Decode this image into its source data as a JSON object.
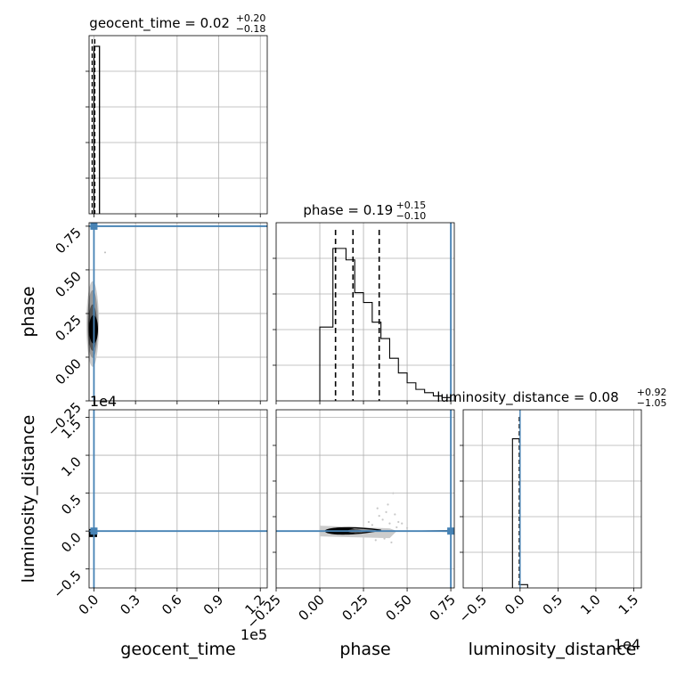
{
  "chart_data": {
    "type": "corner",
    "parameters": [
      "geocent_time",
      "phase",
      "luminosity_distance"
    ],
    "axis_labels": {
      "geocent_time": "geocent_time",
      "phase": "phase",
      "luminosity_distance": "luminosity_distance"
    },
    "titles": [
      {
        "name": "geocent_time",
        "median": "0.02",
        "plus": "+0.20",
        "minus": "−0.18"
      },
      {
        "name": "phase",
        "median": "0.19",
        "plus": "+0.15",
        "minus": "−0.10"
      },
      {
        "name": "luminosity_distance",
        "median": "0.08",
        "plus": "+0.92",
        "minus": "−1.05"
      }
    ],
    "offset_labels": {
      "geocent_time_x": "1e5",
      "luminosity_distance_y": "1e4",
      "luminosity_distance_x": "1e4"
    },
    "ranges": {
      "geocent_time": [
        -3500,
        125000
      ],
      "phase": [
        -0.25,
        0.77
      ],
      "luminosity_distance": [
        -0.75,
        1.6
      ]
    },
    "ticks": {
      "geocent_time": [
        "0.0",
        "0.3",
        "0.6",
        "0.9",
        "1.2"
      ],
      "geocent_time_values": [
        0,
        30000,
        60000,
        90000,
        120000
      ],
      "phase": [
        "−0.25",
        "0.00",
        "0.25",
        "0.50",
        "0.75"
      ],
      "phase_values": [
        -0.25,
        0.0,
        0.25,
        0.5,
        0.75
      ],
      "luminosity_distance": [
        "−0.5",
        "0.0",
        "0.5",
        "1.0",
        "1.5"
      ],
      "luminosity_distance_values": [
        -0.5,
        0.0,
        0.5,
        1.0,
        1.5
      ]
    },
    "truths": {
      "geocent_time": 0,
      "phase": 0.75,
      "luminosity_distance": 0.0
    },
    "histograms": {
      "geocent_time": {
        "bins": [
          [
            0,
            4000
          ]
        ],
        "counts": [
          1.0
        ]
      },
      "phase": {
        "edges": [
          0.0,
          0.025,
          0.05,
          0.075,
          0.1,
          0.125,
          0.15,
          0.175,
          0.2,
          0.225,
          0.25,
          0.275,
          0.3,
          0.325,
          0.35,
          0.375,
          0.4,
          0.425,
          0.45,
          0.475,
          0.5,
          0.525,
          0.55,
          0.575,
          0.6,
          0.625,
          0.65,
          0.675,
          0.7,
          0.725,
          0.75
        ],
        "counts": [
          0.45,
          0.45,
          0.45,
          0.93,
          0.93,
          0.93,
          0.86,
          0.86,
          0.66,
          0.66,
          0.6,
          0.6,
          0.48,
          0.48,
          0.38,
          0.38,
          0.26,
          0.26,
          0.17,
          0.17,
          0.11,
          0.11,
          0.07,
          0.07,
          0.05,
          0.05,
          0.03,
          0.03,
          0.02,
          0.02
        ],
        "quantiles": [
          0.09,
          0.19,
          0.34
        ]
      },
      "luminosity_distance": {
        "edges": [
          -0.1,
          0.0,
          0.1
        ],
        "counts": [
          0.91,
          0.02
        ],
        "quantiles": [
          -0.01,
          0.0
        ]
      }
    },
    "grid": true,
    "truth_color": "#4682b4",
    "fill_colors": [
      "#000000",
      "#555555",
      "#999999",
      "#cccccc"
    ]
  }
}
